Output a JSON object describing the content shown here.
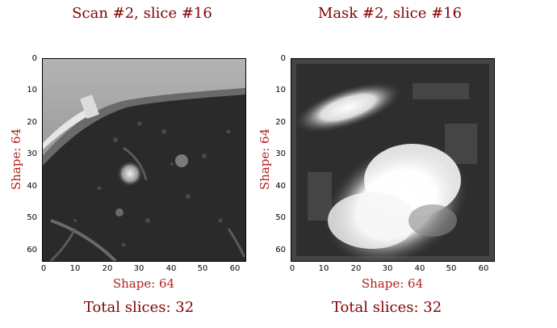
{
  "panels": [
    {
      "title": "Scan #2, slice #16",
      "ylabel": "Shape: 64",
      "xlabel": "Shape: 64",
      "total": "Total slices: 32",
      "image_semantic": "ct-scan-slice-grayscale"
    },
    {
      "title": "Mask #2, slice #16",
      "ylabel": "Shape: 64",
      "xlabel": "Shape: 64",
      "total": "Total slices: 32",
      "image_semantic": "mask-slice-grayscale"
    }
  ],
  "axes": {
    "xticks": [
      "0",
      "10",
      "20",
      "30",
      "40",
      "50",
      "60"
    ],
    "yticks": [
      "0",
      "10",
      "20",
      "30",
      "40",
      "50",
      "60"
    ],
    "range": [
      0,
      63
    ]
  },
  "colors": {
    "title": "#800000",
    "label": "#b22222"
  }
}
